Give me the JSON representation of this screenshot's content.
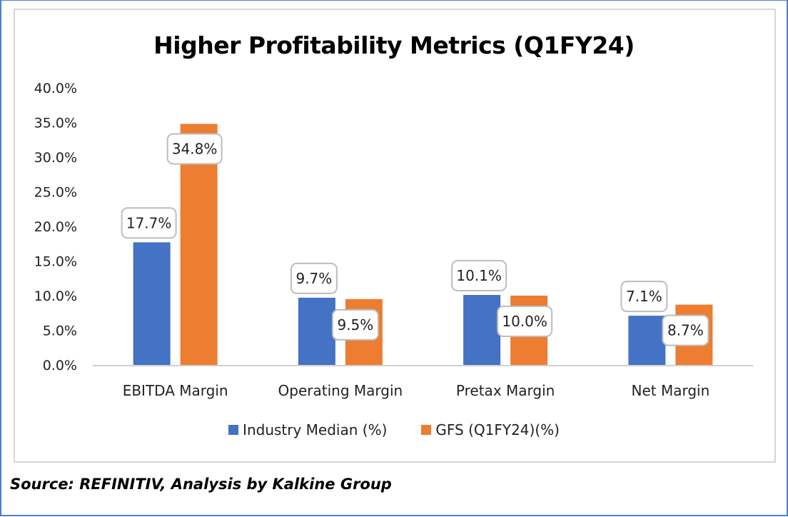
{
  "chart_data": {
    "type": "bar",
    "title": "Higher Profitability Metrics (Q1FY24)",
    "xlabel": "",
    "ylabel": "",
    "categories": [
      "EBITDA Margin",
      "Operating Margin",
      "Pretax Margin",
      "Net Margin"
    ],
    "series": [
      {
        "name": "Industry Median (%)",
        "color": "#4472c4",
        "values": [
          17.7,
          9.7,
          10.1,
          7.1
        ],
        "labels": [
          "17.7%",
          "9.7%",
          "10.1%",
          "7.1%"
        ]
      },
      {
        "name": "GFS (Q1FY24)(%)",
        "color": "#ed7d31",
        "values": [
          34.8,
          9.5,
          10.0,
          8.7
        ],
        "labels": [
          "34.8%",
          "9.5%",
          "10.0%",
          "8.7%"
        ]
      }
    ],
    "ylim": [
      0,
      40
    ],
    "yticks": [
      0,
      5,
      10,
      15,
      20,
      25,
      30,
      35,
      40
    ],
    "ytick_labels": [
      "0.0%",
      "5.0%",
      "10.0%",
      "15.0%",
      "20.0%",
      "25.0%",
      "30.0%",
      "35.0%",
      "40.0%"
    ],
    "grid": false,
    "legend_position": "bottom"
  },
  "source_note": "Source: REFINITIV, Analysis by Kalkine Group"
}
